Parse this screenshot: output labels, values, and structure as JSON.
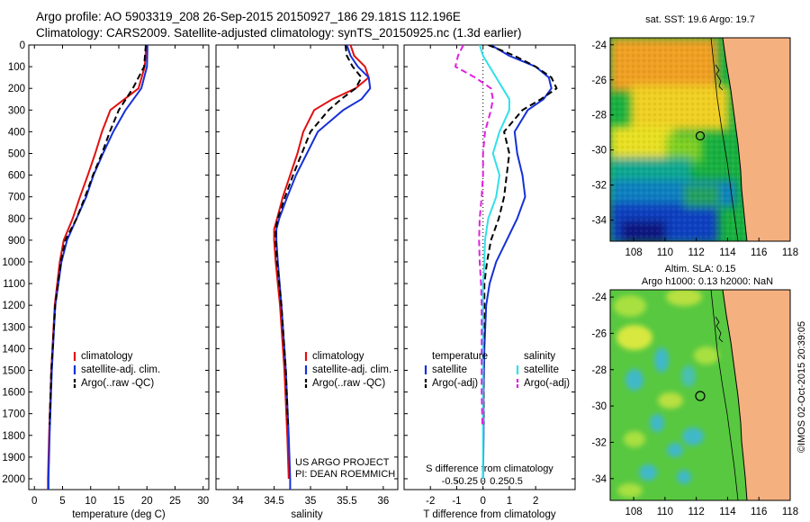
{
  "header": {
    "line1": "Argo profile: AO 5903319_208 26-Sep-2015 20150927_186 29.181S 112.196E",
    "line2": "Climatology: CARS2009. Satellite-adjusted climatology: synTS_20150925.nc (1.3d earlier)"
  },
  "footer": {
    "project": "US ARGO PROJECT",
    "pi": "PI: DEAN ROEMMICH",
    "imos": "©IMOS 02-Oct-2015 20:39:05"
  },
  "colors": {
    "climatology": "#e01010",
    "satellite": "#1530d8",
    "argo": "#000000",
    "temp_satellite": "#1530d8",
    "salinity_satellite": "#30e0e8",
    "salinity_argo": "#e020e0",
    "ocean_deep": "#0a40c0",
    "ocean_mid": "#20b040",
    "ocean_warm": "#f0c020",
    "land": "#f5b080"
  },
  "chart_data": [
    {
      "type": "line",
      "xlabel": "temperature (deg C)",
      "ylabel": "",
      "xlim": [
        -1,
        31
      ],
      "ylim": [
        2050,
        0
      ],
      "xticks": [
        0,
        5,
        10,
        15,
        20,
        25,
        30
      ],
      "yticks": [
        0,
        100,
        200,
        300,
        400,
        500,
        600,
        700,
        800,
        900,
        1000,
        1100,
        1200,
        1300,
        1400,
        1500,
        1600,
        1700,
        1800,
        1900,
        2000
      ],
      "legend": [
        "climatology",
        "satellite-adj. clim.",
        "Argo(..raw -QC)"
      ],
      "series": [
        {
          "name": "climatology",
          "color": "climatology",
          "style": "solid",
          "depth": [
            0,
            100,
            200,
            250,
            300,
            400,
            500,
            600,
            700,
            800,
            900,
            1000,
            1200,
            1500,
            1800,
            2000,
            2050
          ],
          "values": [
            19.9,
            19.6,
            18.5,
            16.0,
            13.5,
            12.0,
            10.8,
            9.5,
            8.1,
            6.8,
            5.2,
            4.5,
            3.6,
            3.0,
            2.6,
            2.4,
            2.4
          ]
        },
        {
          "name": "satellite-adj. clim.",
          "color": "satellite",
          "style": "solid",
          "depth": [
            0,
            100,
            200,
            300,
            400,
            500,
            600,
            700,
            800,
            900,
            1000,
            1200,
            1500,
            1800,
            2000,
            2050
          ],
          "values": [
            20.1,
            20.0,
            19.0,
            16.2,
            14.0,
            12.2,
            10.5,
            9.2,
            7.5,
            5.8,
            4.8,
            3.7,
            3.1,
            2.7,
            2.5,
            2.5
          ]
        },
        {
          "name": "Argo(..raw -QC)",
          "color": "argo",
          "style": "dash",
          "depth": [
            0,
            100,
            200,
            300,
            400,
            500,
            600,
            700,
            800,
            900,
            1000,
            1200,
            1500,
            1750
          ],
          "values": [
            19.8,
            19.5,
            17.5,
            15.0,
            13.4,
            12.0,
            10.4,
            9.0,
            7.5,
            5.5,
            4.7,
            3.7,
            3.0,
            2.7
          ]
        }
      ]
    },
    {
      "type": "line",
      "xlabel": "salinity",
      "ylabel": "",
      "xlim": [
        33.7,
        36.2
      ],
      "ylim": [
        2050,
        0
      ],
      "xticks": [
        34,
        34.5,
        35,
        35.5,
        36
      ],
      "legend": [
        "climatology",
        "satellite-adj. clim.",
        "Argo(..raw -QC)"
      ],
      "series": [
        {
          "name": "climatology",
          "color": "climatology",
          "style": "solid",
          "depth": [
            0,
            50,
            100,
            150,
            200,
            250,
            300,
            400,
            500,
            600,
            700,
            800,
            850,
            900,
            1000,
            1200,
            1500,
            1800,
            2000
          ],
          "values": [
            35.55,
            35.6,
            35.75,
            35.8,
            35.62,
            35.3,
            35.05,
            34.9,
            34.82,
            34.72,
            34.62,
            34.54,
            34.5,
            34.5,
            34.52,
            34.58,
            34.64,
            34.68,
            34.7
          ]
        },
        {
          "name": "satellite-adj. clim.",
          "color": "satellite",
          "style": "solid",
          "depth": [
            0,
            50,
            100,
            150,
            200,
            250,
            300,
            400,
            500,
            600,
            700,
            800,
            850,
            900,
            1000,
            1200,
            1500,
            1800,
            2000,
            2050
          ],
          "values": [
            35.5,
            35.55,
            35.65,
            35.8,
            35.82,
            35.7,
            35.45,
            35.1,
            34.95,
            34.8,
            34.68,
            34.57,
            34.53,
            34.53,
            34.55,
            34.6,
            34.66,
            34.7,
            34.72,
            34.72
          ]
        },
        {
          "name": "Argo(..raw -QC)",
          "color": "argo",
          "style": "dash",
          "depth": [
            0,
            50,
            100,
            150,
            200,
            250,
            300,
            400,
            500,
            600,
            700,
            800,
            850,
            900,
            1000,
            1200,
            1500,
            1750
          ],
          "values": [
            35.48,
            35.5,
            35.58,
            35.7,
            35.62,
            35.42,
            35.25,
            35.0,
            34.88,
            34.76,
            34.65,
            34.55,
            34.52,
            34.52,
            34.54,
            34.6,
            34.66,
            34.69
          ]
        }
      ]
    },
    {
      "type": "line",
      "xlabel": "T difference from climatology",
      "xlabel2": "S difference from climatology",
      "ylabel": "",
      "xlim": [
        -3,
        3.5
      ],
      "ylim": [
        2050,
        0
      ],
      "xticks": [
        -2,
        -1,
        0,
        1,
        2
      ],
      "sxticks": [
        -0.5,
        -0.25,
        0,
        0.25,
        0.5
      ],
      "sxtick_labels": [
        "-0.5",
        "-0.25",
        "0",
        "0.25",
        "0.5"
      ],
      "legend_titles": [
        "temperature",
        "salinity"
      ],
      "legend_temperature": [
        "satellite",
        "Argo(-adj)"
      ],
      "legend_salinity": [
        "satellite",
        "Argo(-adj)"
      ],
      "series": [
        {
          "name": "satellite",
          "group": "temperature",
          "color": "temp_satellite",
          "style": "solid",
          "depth": [
            0,
            50,
            100,
            150,
            200,
            250,
            300,
            400,
            500,
            600,
            700,
            800,
            900,
            1000,
            1100,
            1200,
            1400,
            1600,
            1800,
            2000
          ],
          "values": [
            0.3,
            1.0,
            2.0,
            2.5,
            2.6,
            2.3,
            1.7,
            1.2,
            1.3,
            1.5,
            1.6,
            1.3,
            0.9,
            0.5,
            0.25,
            0.12,
            0.05,
            0.02,
            0.02,
            0.0
          ]
        },
        {
          "name": "Argo(-adj)",
          "group": "temperature",
          "color": "argo",
          "style": "dash",
          "depth": [
            0,
            50,
            100,
            150,
            200,
            250,
            300,
            400,
            500,
            600,
            700,
            800,
            900,
            1000,
            1100,
            1200,
            1400,
            1600,
            1750
          ],
          "values": [
            0.2,
            1.2,
            2.0,
            2.6,
            2.8,
            2.2,
            1.5,
            0.8,
            1.0,
            0.9,
            0.8,
            0.6,
            0.3,
            0.15,
            0.05,
            0.05,
            0.02,
            0.02,
            0.02
          ]
        },
        {
          "name": "satellite",
          "group": "salinity",
          "color": "salinity_satellite",
          "style": "solid",
          "depth": [
            0,
            50,
            100,
            150,
            200,
            250,
            300,
            400,
            500,
            600,
            700,
            800,
            900,
            1000,
            1100,
            1200,
            1400,
            1600,
            1800,
            2000
          ],
          "values": [
            -0.05,
            0.0,
            0.1,
            0.2,
            0.3,
            0.4,
            0.4,
            0.25,
            0.15,
            0.25,
            0.2,
            0.08,
            0.03,
            0.02,
            0.0,
            0.0,
            0.0,
            0.0,
            0.0,
            0.0
          ]
        },
        {
          "name": "Argo(-adj)",
          "group": "salinity",
          "color": "salinity_argo",
          "style": "dash",
          "depth": [
            0,
            50,
            100,
            150,
            200,
            250,
            300,
            400,
            500,
            600,
            700,
            800,
            900,
            1000,
            1100,
            1200,
            1400,
            1600,
            1750
          ],
          "values": [
            -0.3,
            -0.38,
            -0.42,
            -0.12,
            0.12,
            0.15,
            0.12,
            0.03,
            0.0,
            0.0,
            -0.02,
            -0.05,
            -0.06,
            -0.05,
            -0.03,
            -0.02,
            -0.02,
            -0.02,
            -0.01
          ]
        }
      ]
    },
    {
      "type": "heatmap",
      "title": "sat. SST: 19.6 Argo: 19.7",
      "xlim": [
        106.5,
        118
      ],
      "ylim": [
        -35.2,
        -23.6
      ],
      "xticks": [
        108,
        110,
        112,
        114,
        116,
        118
      ],
      "yticks": [
        -24,
        -26,
        -28,
        -30,
        -32,
        -34
      ],
      "marker": {
        "lon": 112.2,
        "lat": -29.18
      }
    },
    {
      "type": "heatmap",
      "title": "Altim. SLA: 0.15",
      "subtitle": "Argo h1000: 0.13 h2000: NaN",
      "xlim": [
        106.5,
        118
      ],
      "ylim": [
        -35.2,
        -23.6
      ],
      "xticks": [
        108,
        110,
        112,
        114,
        116,
        118
      ],
      "yticks": [
        -24,
        -26,
        -28,
        -30,
        -32,
        -34
      ],
      "marker": {
        "lon": 112.2,
        "lat": -29.18
      }
    }
  ]
}
